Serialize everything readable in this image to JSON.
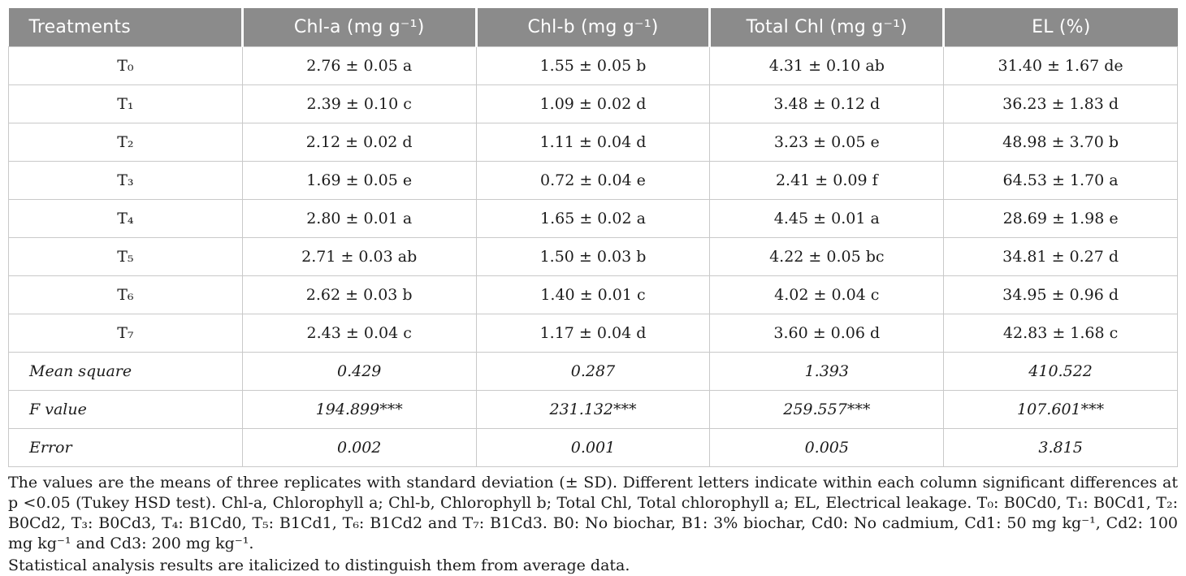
{
  "colors": {
    "header_bg": "#8b8b8b",
    "header_text": "#ffffff",
    "grid": "#c9c9c9",
    "body_text": "#1c1c1c"
  },
  "table": {
    "columns": [
      {
        "label": "Treatments"
      },
      {
        "label": "Chl-a (mg g⁻¹)"
      },
      {
        "label": "Chl-b (mg g⁻¹)"
      },
      {
        "label": "Total Chl (mg g⁻¹)"
      },
      {
        "label": "EL (%)"
      }
    ],
    "rows": [
      [
        "T₀",
        "2.76 ± 0.05 a",
        "1.55 ± 0.05 b",
        "4.31 ± 0.10 ab",
        "31.40 ± 1.67 de"
      ],
      [
        "T₁",
        "2.39 ± 0.10 c",
        "1.09 ± 0.02 d",
        "3.48 ± 0.12 d",
        "36.23 ± 1.83 d"
      ],
      [
        "T₂",
        "2.12 ± 0.02 d",
        "1.11 ± 0.04 d",
        "3.23 ± 0.05 e",
        "48.98 ± 3.70 b"
      ],
      [
        "T₃",
        "1.69 ± 0.05 e",
        "0.72 ± 0.04 e",
        "2.41 ± 0.09 f",
        "64.53 ± 1.70 a"
      ],
      [
        "T₄",
        "2.80 ± 0.01 a",
        "1.65 ± 0.02 a",
        "4.45 ± 0.01 a",
        "28.69 ± 1.98 e"
      ],
      [
        "T₅",
        "2.71 ± 0.03 ab",
        "1.50 ± 0.03 b",
        "4.22 ± 0.05 bc",
        "34.81 ± 0.27 d"
      ],
      [
        "T₆",
        "2.62 ± 0.03 b",
        "1.40 ± 0.01 c",
        "4.02 ± 0.04 c",
        "34.95 ± 0.96 d"
      ],
      [
        "T₇",
        "2.43 ± 0.04 c",
        "1.17 ± 0.04 d",
        "3.60 ± 0.06 d",
        "42.83 ± 1.68 c"
      ]
    ],
    "stats_rows": [
      [
        "Mean square",
        "0.429",
        "0.287",
        "1.393",
        "410.522"
      ],
      [
        "F value",
        "194.899***",
        "231.132***",
        "259.557***",
        "107.601***"
      ],
      [
        "Error",
        "0.002",
        "0.001",
        "0.005",
        "3.815"
      ]
    ]
  },
  "footnotes": {
    "main": "The values are the means of three replicates with standard deviation (± SD). Different letters indicate within each column significant differences at p <0.05 (Tukey HSD test). Chl-a, Chlorophyll a; Chl-b, Chlorophyll b; Total Chl, Total chlorophyll a; EL, Electrical leakage. T₀: B0Cd0, T₁: B0Cd1, T₂: B0Cd2, T₃: B0Cd3, T₄: B1Cd0, T₅: B1Cd1, T₆: B1Cd2 and T₇: B1Cd3. B0: No biochar, B1: 3% biochar, Cd0: No cadmium, Cd1: 50 mg kg⁻¹, Cd2: 100 mg kg⁻¹ and Cd3: 200 mg kg⁻¹.",
    "stats": "Statistical analysis results are italicized to distinguish them from average data."
  }
}
